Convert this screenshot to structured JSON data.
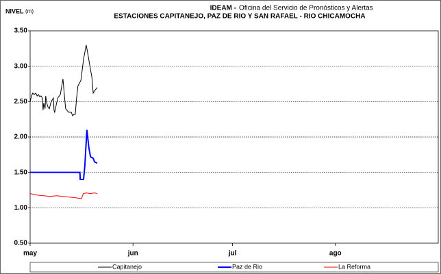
{
  "chart_data": {
    "type": "line",
    "title_prefix": "IDEAM -",
    "title": "Oficina del Servicio de Pronósticos y Alertas",
    "subtitle": "ESTACIONES CAPITANEJO, PAZ DE RIO Y SAN RAFAEL -  RIO CHICAMOCHA",
    "ylabel": "NIVEL",
    "ylabel_unit": "(m)",
    "xlim": [
      0,
      123
    ],
    "xticks": [
      {
        "value": 0,
        "label": "may"
      },
      {
        "value": 31,
        "label": "jun"
      },
      {
        "value": 61,
        "label": "jul"
      },
      {
        "value": 92,
        "label": "ago"
      }
    ],
    "ylim": [
      0.5,
      3.5
    ],
    "yticks": [
      {
        "value": 0.5,
        "label": "0.50"
      },
      {
        "value": 1,
        "label": "1.00"
      },
      {
        "value": 1.5,
        "label": "1.50"
      },
      {
        "value": 2,
        "label": "2.00"
      },
      {
        "value": 2.5,
        "label": "2.50"
      },
      {
        "value": 3,
        "label": "3.00"
      },
      {
        "value": 3.5,
        "label": "3.50"
      }
    ],
    "grid": true,
    "legend": "bottom",
    "series": [
      {
        "name": "Capitanejo",
        "color": "#000000",
        "width": 1,
        "x": [
          0,
          0.4,
          0.8,
          1.2,
          1.7,
          2.1,
          2.5,
          2.9,
          3.3,
          3.7,
          3.9,
          4.1,
          4.5,
          4.7,
          5.0,
          5.4,
          5.8,
          6.2,
          6.6,
          7.0,
          7.2,
          7.4,
          8.3,
          9.1,
          9.9,
          10.3,
          10.7,
          11.6,
          12.4,
          12.8,
          13.2,
          13.6,
          14.0,
          14.4,
          15.3,
          16.1,
          16.9,
          17.3,
          18.2,
          18.6,
          19.0,
          19.4,
          20.2
        ],
        "values": [
          2.5,
          2.58,
          2.62,
          2.6,
          2.62,
          2.58,
          2.6,
          2.57,
          2.58,
          2.55,
          2.38,
          2.48,
          2.4,
          2.58,
          2.48,
          2.42,
          2.4,
          2.48,
          2.52,
          2.55,
          2.38,
          2.35,
          2.55,
          2.6,
          2.82,
          2.6,
          2.4,
          2.35,
          2.35,
          2.3,
          2.32,
          2.32,
          2.55,
          2.72,
          2.8,
          3.1,
          3.3,
          3.2,
          2.95,
          2.85,
          2.62,
          2.65,
          2.7
        ]
      },
      {
        "name": "Paz de Rio",
        "color": "#0000ff",
        "width": 2,
        "x": [
          0,
          15.0,
          15.1,
          16.1,
          16.5,
          17.1,
          17.7,
          18.2,
          19.0,
          19.4,
          20.2
        ],
        "values": [
          1.5,
          1.5,
          1.4,
          1.4,
          1.6,
          2.1,
          1.85,
          1.72,
          1.7,
          1.65,
          1.63
        ]
      },
      {
        "name": "La Reforma",
        "color": "#ff0000",
        "width": 1,
        "x": [
          0,
          2,
          4,
          6,
          8,
          10,
          12,
          14,
          15,
          15.5,
          16,
          17,
          18,
          19.5,
          20.2
        ],
        "values": [
          1.2,
          1.18,
          1.17,
          1.16,
          1.17,
          1.16,
          1.15,
          1.14,
          1.13,
          1.13,
          1.2,
          1.21,
          1.2,
          1.21,
          1.2
        ]
      }
    ]
  }
}
